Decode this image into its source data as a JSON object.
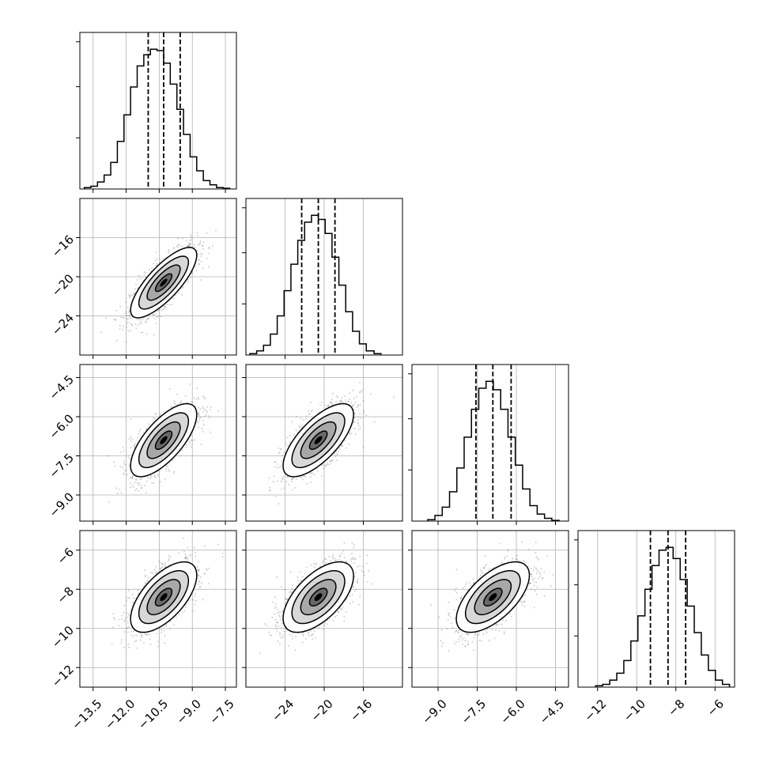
{
  "chart_data": {
    "type": "corner",
    "title": "",
    "grid": true,
    "parameters": [
      {
        "index": 0,
        "range": [
          -14.1,
          -7.0
        ],
        "ticks": [
          -13.5,
          -12.0,
          -10.5,
          -9.0,
          -7.5
        ],
        "tick_labels": [
          "−13.5",
          "−12.0",
          "−10.5",
          "−9.0",
          "−7.5"
        ],
        "quantiles": [
          -11.0,
          -10.3,
          -9.55
        ],
        "mean": -10.3,
        "sigma": 0.75,
        "histogram": {
          "bin_edges": [
            -13.9,
            -13.6,
            -13.3,
            -13.0,
            -12.7,
            -12.4,
            -12.1,
            -11.8,
            -11.5,
            -11.2,
            -10.9,
            -10.6,
            -10.3,
            -10.0,
            -9.7,
            -9.4,
            -9.1,
            -8.8,
            -8.5,
            -8.2,
            -7.9,
            -7.6,
            -7.3
          ],
          "counts": [
            1,
            2,
            5,
            10,
            19,
            34,
            53,
            73,
            88,
            96,
            100,
            99,
            90,
            75,
            57,
            39,
            23,
            13,
            6,
            3,
            1,
            0.5
          ]
        }
      },
      {
        "index": 1,
        "range": [
          -28.0,
          -12.0
        ],
        "ticks": [
          -24,
          -20,
          -16
        ],
        "tick_labels": [
          "−24",
          "−20",
          "−16"
        ],
        "quantiles": [
          -22.3,
          -20.6,
          -18.9
        ],
        "mean": -20.6,
        "sigma": 1.8,
        "histogram": {
          "bin_edges": [
            -27.6,
            -26.9,
            -26.2,
            -25.5,
            -24.8,
            -24.1,
            -23.4,
            -22.7,
            -22.0,
            -21.3,
            -20.6,
            -19.9,
            -19.2,
            -18.5,
            -17.8,
            -17.1,
            -16.4,
            -15.7,
            -14.9,
            -14.2
          ],
          "counts": [
            1,
            3,
            7,
            15,
            28,
            46,
            65,
            82,
            95,
            100,
            97,
            87,
            70,
            50,
            31,
            17,
            8,
            3,
            1
          ]
        }
      },
      {
        "index": 2,
        "range": [
          -10.0,
          -4.0
        ],
        "ticks": [
          -9.0,
          -7.5,
          -6.0,
          -4.5
        ],
        "tick_labels": [
          "−9.0",
          "−7.5",
          "−6.0",
          "−4.5"
        ],
        "quantiles": [
          -7.55,
          -6.9,
          -6.2
        ],
        "mean": -6.9,
        "sigma": 0.7,
        "histogram": {
          "bin_edges": [
            -9.4,
            -9.12,
            -8.84,
            -8.56,
            -8.28,
            -8.0,
            -7.72,
            -7.44,
            -7.16,
            -6.88,
            -6.6,
            -6.32,
            -6.04,
            -5.76,
            -5.48,
            -5.2,
            -4.92,
            -4.64,
            -4.36
          ],
          "counts": [
            1,
            4,
            10,
            21,
            38,
            60,
            80,
            95,
            100,
            94,
            80,
            60,
            40,
            23,
            11,
            5,
            2,
            0.5
          ]
        }
      },
      {
        "index": 3,
        "range": [
          -13.0,
          -5.0
        ],
        "ticks": [
          -12,
          -10,
          -8,
          -6
        ],
        "tick_labels": [
          "−12",
          "−10",
          "−8",
          "−6"
        ],
        "quantiles": [
          -9.3,
          -8.4,
          -7.5
        ],
        "mean": -8.4,
        "sigma": 0.9,
        "histogram": {
          "bin_edges": [
            -12.1,
            -11.74,
            -11.38,
            -11.02,
            -10.66,
            -10.3,
            -9.94,
            -9.58,
            -9.22,
            -8.86,
            -8.5,
            -8.14,
            -7.78,
            -7.42,
            -7.06,
            -6.7,
            -6.34,
            -5.98,
            -5.62,
            -5.26
          ],
          "counts": [
            1,
            2,
            5,
            10,
            19,
            33,
            51,
            70,
            87,
            98,
            100,
            92,
            77,
            58,
            39,
            23,
            12,
            5,
            2
          ]
        }
      }
    ],
    "correlations": {
      "1_0": 0.78,
      "2_0": 0.7,
      "2_1": 0.7,
      "3_0": 0.62,
      "3_1": 0.6,
      "3_2": 0.62
    },
    "contour_levels_sigma": [
      0.5,
      1.0,
      1.5,
      2.0
    ],
    "colors": {
      "line": "#000000",
      "grid": "#b0b0b0",
      "points": "#808080"
    }
  }
}
